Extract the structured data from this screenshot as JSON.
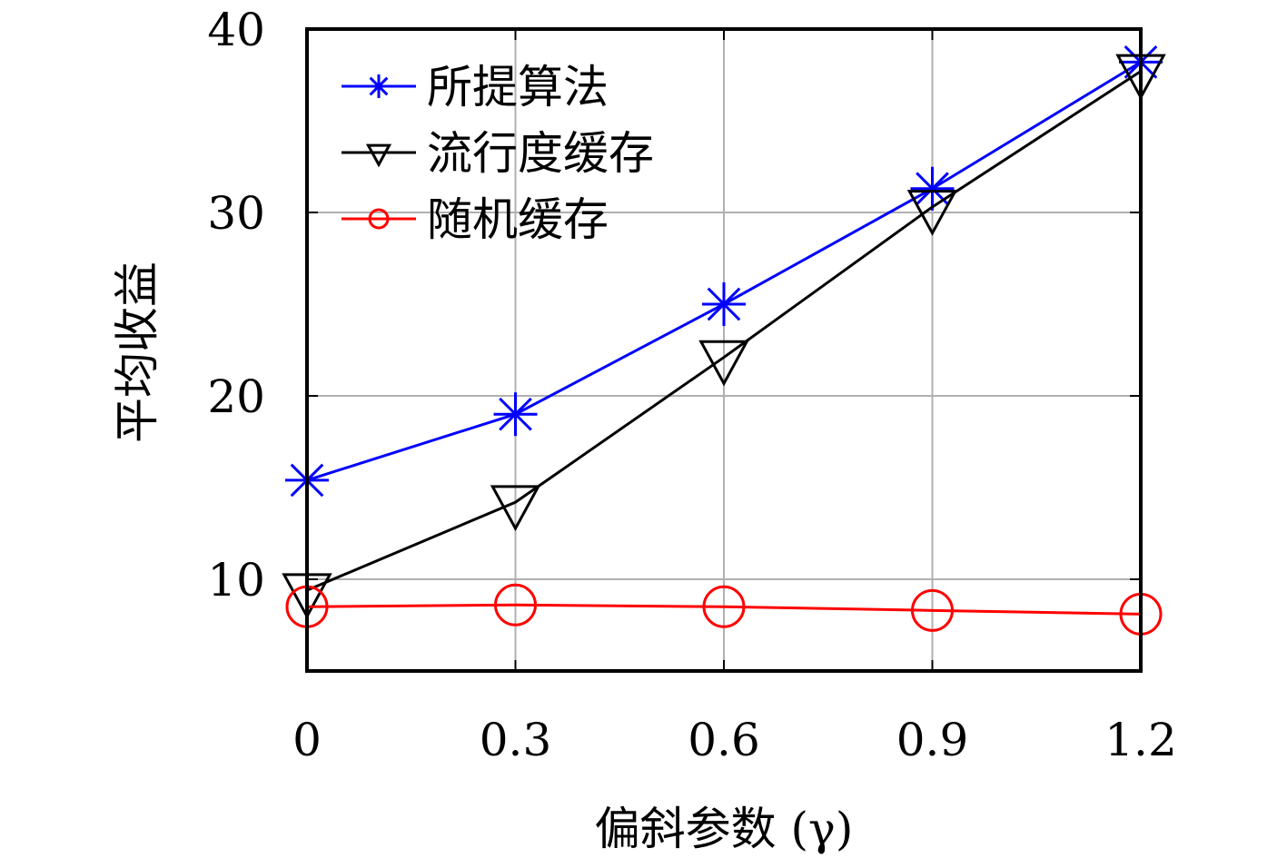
{
  "chart_data": {
    "type": "line",
    "title": "",
    "xlabel": "偏斜参数 (γ)",
    "ylabel": "平均收益",
    "x": [
      0,
      0.3,
      0.6,
      0.9,
      1.2
    ],
    "x_tick_labels": [
      "0",
      "0.3",
      "0.6",
      "0.9",
      "1.2"
    ],
    "y_ticks": [
      10,
      20,
      30,
      40
    ],
    "y_tick_labels": [
      "10",
      "20",
      "30",
      "40"
    ],
    "xlim": [
      0,
      1.2
    ],
    "ylim": [
      5,
      40
    ],
    "grid": true,
    "legend_position": "top-left",
    "series": [
      {
        "name": "所提算法",
        "color": "#0000ff",
        "marker": "star",
        "values": [
          15.4,
          19.0,
          25.0,
          31.3,
          38.2
        ]
      },
      {
        "name": "流行度缓存",
        "color": "#000000",
        "marker": "triangle-down",
        "values": [
          9.4,
          14.2,
          22.1,
          30.3,
          37.7
        ]
      },
      {
        "name": "随机缓存",
        "color": "#ff0000",
        "marker": "circle",
        "values": [
          8.5,
          8.6,
          8.5,
          8.3,
          8.1
        ]
      }
    ]
  }
}
